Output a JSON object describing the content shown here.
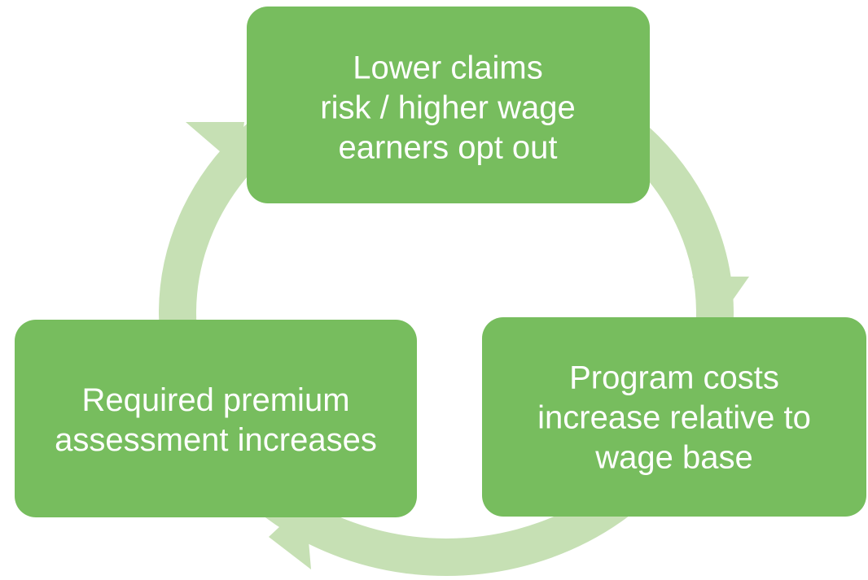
{
  "nodes": [
    {
      "lines": [
        "Lower claims",
        "risk / higher wage",
        "earners opt out"
      ]
    },
    {
      "lines": [
        "Program costs",
        "increase relative to",
        "wage base"
      ]
    },
    {
      "lines": [
        "Required premium",
        "assessment increases"
      ]
    }
  ]
}
